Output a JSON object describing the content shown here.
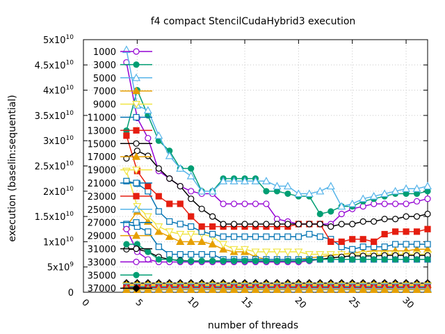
{
  "chart_data": {
    "type": "line",
    "title": "f4 compact StencilCudaHybrid3 execution",
    "xlabel": "number of threads",
    "ylabel": "execution (baselin:sequential)",
    "xlim": [
      0,
      32
    ],
    "ylim": [
      0,
      50000000000
    ],
    "x_ticks": [
      {
        "v": 0,
        "label": "0"
      },
      {
        "v": 5,
        "label": "5"
      },
      {
        "v": 10,
        "label": "10"
      },
      {
        "v": 15,
        "label": "15"
      },
      {
        "v": 20,
        "label": "20"
      },
      {
        "v": 25,
        "label": "25"
      },
      {
        "v": 30,
        "label": "30"
      }
    ],
    "y_ticks": [
      {
        "v": 0,
        "base": "0",
        "exp": ""
      },
      {
        "v": 5000000000,
        "base": "5x10",
        "exp": "9"
      },
      {
        "v": 10000000000,
        "base": "1x10",
        "exp": "10"
      },
      {
        "v": 15000000000,
        "base": "1.5x10",
        "exp": "10"
      },
      {
        "v": 20000000000,
        "base": "2x10",
        "exp": "10"
      },
      {
        "v": 25000000000,
        "base": "2.5x10",
        "exp": "10"
      },
      {
        "v": 30000000000,
        "base": "3x10",
        "exp": "10"
      },
      {
        "v": 35000000000,
        "base": "3.5x10",
        "exp": "10"
      },
      {
        "v": 40000000000,
        "base": "4x10",
        "exp": "10"
      },
      {
        "v": 45000000000,
        "base": "4.5x10",
        "exp": "10"
      },
      {
        "v": 50000000000,
        "base": "5x10",
        "exp": "10"
      }
    ],
    "grid": true,
    "legend_position": "top-left",
    "x": [
      4,
      5,
      6,
      7,
      8,
      9,
      10,
      11,
      12,
      13,
      14,
      15,
      16,
      17,
      18,
      19,
      20,
      21,
      22,
      23,
      24,
      25,
      26,
      27,
      28,
      29,
      30,
      31,
      32
    ],
    "series": [
      {
        "name": "1000",
        "color": "#9400d3",
        "marker": "circle-open",
        "values": [
          45.5,
          34.5,
          30.5,
          24,
          22.5,
          21,
          20,
          19.5,
          19.5,
          17.5,
          17.5,
          17.5,
          17.5,
          17.5,
          14.5,
          14,
          13.5,
          13.5,
          13.5,
          13.5,
          15.5,
          16.5,
          17,
          17.5,
          17.5,
          17.5,
          17.5,
          18,
          18.5
        ]
      },
      {
        "name": "3000",
        "color": "#009e73",
        "marker": "circle-filled",
        "values": [
          32,
          40,
          35,
          30,
          28,
          24.5,
          24.5,
          20,
          20,
          22.5,
          22.5,
          22.5,
          22.5,
          20,
          20,
          19.5,
          19,
          19,
          15.5,
          16,
          17,
          17,
          18,
          18.5,
          19,
          19.5,
          19.5,
          19.5,
          20
        ]
      },
      {
        "name": "5000",
        "color": "#56b4e9",
        "marker": "triangle-up-open",
        "values": [
          48,
          37,
          36,
          31,
          27,
          24.5,
          23,
          20,
          20,
          22,
          22,
          22,
          22,
          22,
          21,
          21,
          19.5,
          19.5,
          20,
          21,
          17,
          17.5,
          18.5,
          19,
          19.5,
          20,
          20.5,
          20.5,
          21
        ]
      },
      {
        "name": "7000",
        "color": "#e69f00",
        "marker": "triangle-up-filled",
        "values": [
          13,
          16,
          14,
          12,
          11,
          10,
          10,
          10,
          9.5,
          8.5,
          8,
          8,
          7,
          6.5,
          6.5,
          6.5,
          6.5,
          6.8,
          7,
          7.3,
          7.5,
          7.8,
          8,
          8.2,
          8.2,
          8.2,
          8.2,
          8.5,
          8.5
        ]
      },
      {
        "name": "9000",
        "color": "#f0e442",
        "marker": "triangle-down-open",
        "values": [
          24,
          17,
          15,
          13,
          12,
          11.5,
          11.5,
          11.5,
          11,
          9.5,
          8.5,
          8.5,
          8,
          8,
          8,
          8,
          8,
          7.5,
          7.5,
          7.5,
          7.5,
          7.5,
          7.5,
          7.5,
          7.5,
          7.5,
          7.5,
          7.5,
          7.5
        ]
      },
      {
        "name": "11000",
        "color": "#0072b2",
        "marker": "square-open",
        "values": [
          22,
          21.5,
          20,
          16,
          14,
          13.5,
          13,
          12,
          11.5,
          11,
          11,
          11,
          11,
          11,
          11,
          11,
          11,
          11.5,
          11,
          10.5,
          9,
          8.5,
          9,
          9,
          9,
          9.5,
          9.5,
          9.5,
          9.5
        ]
      },
      {
        "name": "13000",
        "color": "#e51e10",
        "marker": "square-filled",
        "values": [
          31,
          24,
          21,
          19,
          17.5,
          17.5,
          15,
          13,
          13,
          13,
          13,
          13,
          13,
          13,
          13,
          13,
          13.5,
          13.5,
          13.5,
          10,
          10,
          10.5,
          10.5,
          10,
          11.5,
          12,
          12,
          12,
          12.5
        ]
      },
      {
        "name": "15000",
        "color": "#000000",
        "marker": "circle-open",
        "values": [
          26.5,
          28,
          27,
          24.5,
          22.5,
          21,
          18.5,
          16.5,
          15,
          13.5,
          13.5,
          13.5,
          13.5,
          13.5,
          13.5,
          13.5,
          13.5,
          13.5,
          13.5,
          13,
          13.5,
          13.5,
          14,
          14,
          14.5,
          14.5,
          15,
          15,
          15.5
        ]
      },
      {
        "name": "27000",
        "color": "#0072b2",
        "marker": "square-open",
        "values": [
          13.5,
          13,
          12,
          9,
          7.5,
          7.5,
          7.5,
          7.5,
          7.5,
          6.5,
          6.5,
          6.5,
          6.5,
          6.5,
          6.5,
          6.5,
          6.5,
          6.5,
          6.5,
          6.5,
          6.5,
          6.5,
          6.5,
          6.5,
          6.5,
          6.5,
          6.5,
          6.5,
          6.5
        ]
      },
      {
        "name": "31000",
        "color": "#000000",
        "marker": "circle-open",
        "values": [
          8.5,
          8.5,
          8,
          7,
          6.5,
          6.3,
          6.2,
          6.2,
          6.2,
          6.2,
          6.2,
          6.2,
          6.2,
          6.2,
          6.2,
          6.2,
          6.2,
          6.3,
          6.5,
          6.8,
          7,
          7.2,
          7.2,
          7.2,
          7.3,
          7.3,
          7.3,
          7.3,
          7.3
        ]
      },
      {
        "name": "33000",
        "color": "#9400d3",
        "marker": "circle-open",
        "values": [
          12.5,
          8,
          6.5,
          6,
          6,
          6,
          6,
          6,
          6,
          6,
          6,
          6,
          6,
          6,
          6,
          6,
          6,
          6.2,
          6.5,
          6.5,
          6.5,
          6.5,
          6.5,
          6.5,
          6.5,
          6.5,
          6.5,
          6.5,
          6.5
        ]
      },
      {
        "name": "35000",
        "color": "#009e73",
        "marker": "circle-filled",
        "values": [
          9.5,
          9.5,
          8,
          6.5,
          6.5,
          6.2,
          6.2,
          6.2,
          6.2,
          6.2,
          6.2,
          6.2,
          6.2,
          6.2,
          6.2,
          6.2,
          6.2,
          6.3,
          6.5,
          6.5,
          6.5,
          6.5,
          6.5,
          6.5,
          6.5,
          6.5,
          6.5,
          6.5,
          6.5
        ]
      },
      {
        "name": "37000",
        "color": "#000000",
        "marker": "diamond-filled",
        "values": [
          1.8,
          1.8,
          1.8,
          1.8,
          1.8,
          1.8,
          1.8,
          1.8,
          1.8,
          1.8,
          1.8,
          1.8,
          1.8,
          1.8,
          1.8,
          1.8,
          1.8,
          1.8,
          1.8,
          1.8,
          1.8,
          1.8,
          1.8,
          1.8,
          1.8,
          1.8,
          1.8,
          1.8,
          1.8
        ]
      },
      {
        "name": "17000",
        "color": "#e69f00",
        "marker": "triangle-up-filled",
        "values": [
          1.5,
          1.5,
          1.5,
          1.5,
          1.5,
          1.5,
          1.5,
          1.5,
          1.5,
          1.5,
          1.5,
          1.5,
          1.5,
          1.5,
          1.5,
          1.5,
          1.5,
          1.5,
          1.5,
          1.5,
          1.5,
          1.5,
          1.5,
          1.5,
          1.5,
          1.5,
          1.5,
          1.5,
          1.5
        ]
      },
      {
        "name": "19000",
        "color": "#f0e442",
        "marker": "triangle-down-open",
        "values": [
          1.3,
          1.3,
          1.3,
          1.3,
          1.3,
          1.3,
          1.3,
          1.3,
          1.3,
          1.3,
          1.3,
          1.3,
          1.3,
          1.3,
          1.3,
          1.3,
          1.3,
          1.3,
          1.3,
          1.3,
          1.3,
          1.3,
          1.3,
          1.3,
          1.3,
          1.3,
          1.3,
          1.3,
          1.3
        ]
      },
      {
        "name": "21000",
        "color": "#0072b2",
        "marker": "square-open",
        "values": [
          1.1,
          1.1,
          1.1,
          1.1,
          1.1,
          1.1,
          1.1,
          1.1,
          1.1,
          1.1,
          1.1,
          1.1,
          1.1,
          1.1,
          1.1,
          1.1,
          1.1,
          1.1,
          1.1,
          1.1,
          1.1,
          1.1,
          1.1,
          1.1,
          1.1,
          1.1,
          1.1,
          1.1,
          1.1
        ]
      },
      {
        "name": "23000",
        "color": "#e51e10",
        "marker": "square-filled",
        "values": [
          0.9,
          0.9,
          0.9,
          0.9,
          0.9,
          0.9,
          0.9,
          0.9,
          0.9,
          0.9,
          0.9,
          0.9,
          0.9,
          0.9,
          0.9,
          0.9,
          0.9,
          0.9,
          0.9,
          0.9,
          0.9,
          0.9,
          0.9,
          0.9,
          0.9,
          0.9,
          0.9,
          0.9,
          0.9
        ]
      },
      {
        "name": "25000",
        "color": "#56b4e9",
        "marker": "triangle-up-open",
        "values": [
          0.7,
          0.7,
          0.7,
          0.7,
          0.7,
          0.7,
          0.7,
          0.7,
          0.7,
          0.7,
          0.7,
          0.7,
          0.7,
          0.7,
          0.7,
          0.7,
          0.7,
          0.7,
          0.7,
          0.7,
          0.7,
          0.7,
          0.7,
          0.7,
          0.7,
          0.7,
          0.7,
          0.7,
          0.7
        ]
      },
      {
        "name": "29000",
        "color": "#e69f00",
        "marker": "triangle-up-filled",
        "values": [
          0.5,
          0.5,
          0.5,
          0.5,
          0.5,
          0.5,
          0.5,
          0.5,
          0.5,
          0.5,
          0.5,
          0.5,
          0.5,
          0.5,
          0.5,
          0.5,
          0.5,
          0.5,
          0.5,
          0.5,
          0.5,
          0.5,
          0.5,
          0.5,
          0.5,
          0.5,
          0.5,
          0.5,
          0.5
        ]
      }
    ],
    "value_unit_multiplier": 1000000000,
    "legend_order": [
      "1000",
      "3000",
      "5000",
      "7000",
      "9000",
      "11000",
      "13000",
      "15000",
      "17000",
      "19000",
      "21000",
      "23000",
      "25000",
      "27000",
      "29000",
      "31000",
      "33000",
      "35000",
      "37000"
    ]
  }
}
